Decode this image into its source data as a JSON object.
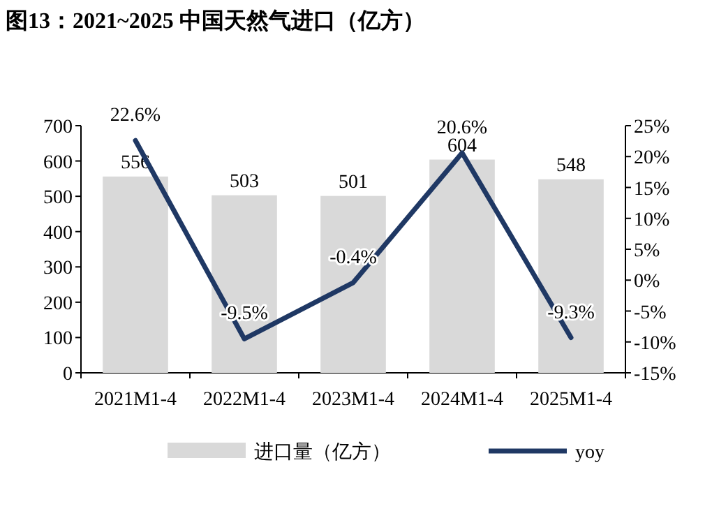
{
  "chart_data": {
    "type": "bar",
    "title": "图13：2021~2025 中国天然气进口（亿方）",
    "categories": [
      "2021M1-4",
      "2022M1-4",
      "2023M1-4",
      "2024M1-4",
      "2025M1-4"
    ],
    "series": [
      {
        "name": "进口量（亿方）",
        "color": "#d9d9d9",
        "values": [
          556,
          503,
          501,
          604,
          548
        ],
        "value_labels": [
          "556",
          "503",
          "501",
          "604",
          "548"
        ]
      },
      {
        "name": "yoy",
        "type": "line",
        "axis": "y2",
        "color": "#1f3864",
        "values": [
          22.6,
          -9.5,
          -0.4,
          20.6,
          -9.3
        ],
        "value_labels": [
          "22.6%",
          "-9.5%",
          "-0.4%",
          "20.6%",
          "-9.3%"
        ]
      }
    ],
    "ylim": [
      0,
      700
    ],
    "yticks": [
      0,
      100,
      200,
      300,
      400,
      500,
      600,
      700
    ],
    "y2lim": [
      -15,
      25
    ],
    "y2ticks": [
      {
        "value": -15,
        "label": "-15%"
      },
      {
        "value": -10,
        "label": "-10%"
      },
      {
        "value": -5,
        "label": "-5%"
      },
      {
        "value": 0,
        "label": "0%"
      },
      {
        "value": 5,
        "label": "5%"
      },
      {
        "value": 10,
        "label": "10%"
      },
      {
        "value": 15,
        "label": "15%"
      },
      {
        "value": 20,
        "label": "20%"
      },
      {
        "value": 25,
        "label": "25%"
      }
    ],
    "legend": "bottom",
    "grid": false
  }
}
